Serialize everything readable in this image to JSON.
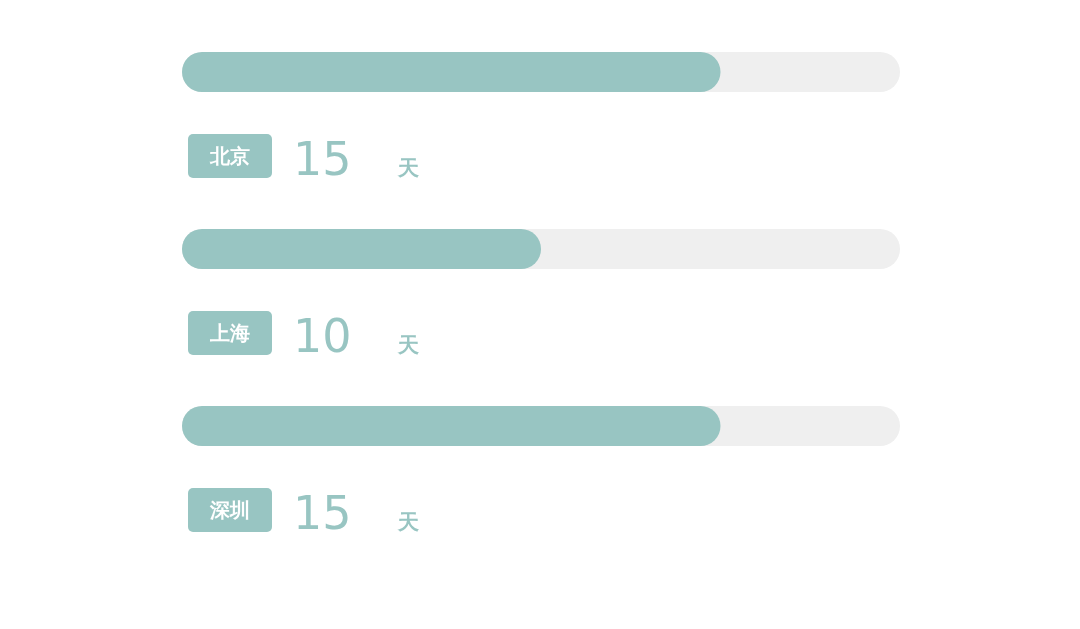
{
  "chart_data": {
    "type": "bar",
    "orientation": "horizontal",
    "categories": [
      "北京",
      "上海",
      "深圳"
    ],
    "values": [
      15,
      10,
      15
    ],
    "color": "#98c5c2",
    "xlim": [
      0,
      20
    ],
    "value_labels": [
      "15 天",
      "10 天",
      "15 天"
    ],
    "tick_labels": "y"
  }
}
